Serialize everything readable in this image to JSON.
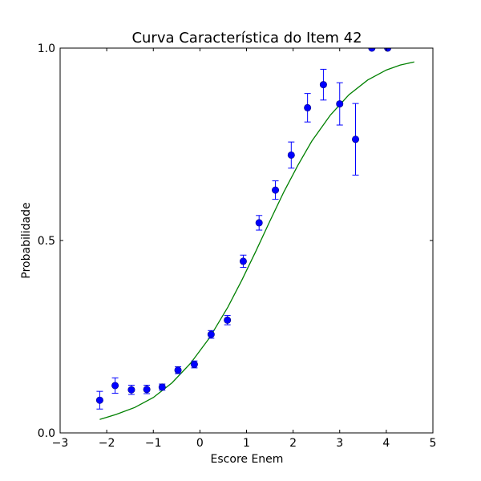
{
  "chart_data": {
    "type": "scatter",
    "title": "Curva Característica do Item 42",
    "xlabel": "Escore Enem",
    "ylabel": "Probabilidade",
    "xlim": [
      -3,
      5
    ],
    "ylim": [
      0.0,
      1.0
    ],
    "xticks": [
      -3,
      -2,
      -1,
      0,
      1,
      2,
      3,
      4,
      5
    ],
    "xtick_labels": [
      "−3",
      "−2",
      "−1",
      "0",
      "1",
      "2",
      "3",
      "4",
      "5"
    ],
    "yticks": [
      0.0,
      0.5,
      1.0
    ],
    "ytick_labels": [
      "0.0",
      "0.5",
      "1.0"
    ],
    "grid": false,
    "colors": {
      "points": "#0000ff",
      "errorbars": "#0000ff",
      "curve": "#008000",
      "axes": "#000000"
    },
    "series": [
      {
        "type": "errorbar",
        "points": [
          {
            "x": -2.15,
            "y": 0.085,
            "err": 0.023
          },
          {
            "x": -1.82,
            "y": 0.123,
            "err": 0.02
          },
          {
            "x": -1.47,
            "y": 0.112,
            "err": 0.012
          },
          {
            "x": -1.14,
            "y": 0.113,
            "err": 0.011
          },
          {
            "x": -0.81,
            "y": 0.119,
            "err": 0.008
          },
          {
            "x": -0.47,
            "y": 0.163,
            "err": 0.009
          },
          {
            "x": -0.12,
            "y": 0.178,
            "err": 0.009
          },
          {
            "x": 0.24,
            "y": 0.256,
            "err": 0.01
          },
          {
            "x": 0.59,
            "y": 0.293,
            "err": 0.012
          },
          {
            "x": 0.93,
            "y": 0.446,
            "err": 0.016
          },
          {
            "x": 1.27,
            "y": 0.546,
            "err": 0.019
          },
          {
            "x": 1.62,
            "y": 0.631,
            "err": 0.024
          },
          {
            "x": 1.96,
            "y": 0.722,
            "err": 0.034
          },
          {
            "x": 2.31,
            "y": 0.845,
            "err": 0.037
          },
          {
            "x": 2.65,
            "y": 0.905,
            "err": 0.04
          },
          {
            "x": 3.0,
            "y": 0.855,
            "err": 0.055
          },
          {
            "x": 3.34,
            "y": 0.763,
            "err": 0.093
          },
          {
            "x": 3.69,
            "y": 1.0,
            "err": 0.0
          },
          {
            "x": 4.03,
            "y": 1.0,
            "err": 0.0
          }
        ]
      },
      {
        "type": "line",
        "x": [
          -2.15,
          -1.8,
          -1.4,
          -1.0,
          -0.6,
          -0.2,
          0.2,
          0.6,
          0.9,
          1.2,
          1.5,
          1.8,
          2.1,
          2.4,
          2.8,
          3.2,
          3.6,
          4.0,
          4.3,
          4.6
        ],
        "y": [
          0.035,
          0.048,
          0.066,
          0.092,
          0.13,
          0.181,
          0.246,
          0.327,
          0.397,
          0.472,
          0.55,
          0.626,
          0.695,
          0.758,
          0.826,
          0.879,
          0.917,
          0.943,
          0.956,
          0.964
        ]
      }
    ]
  }
}
